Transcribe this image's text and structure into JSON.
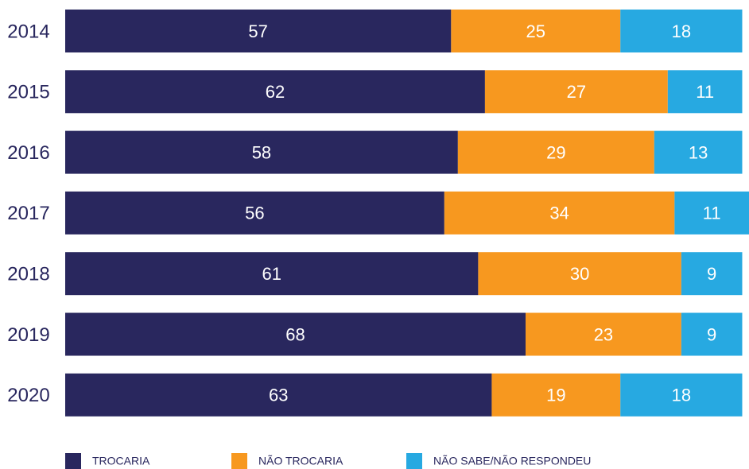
{
  "chart_data": {
    "type": "bar",
    "orientation": "horizontal",
    "stacked": true,
    "categories": [
      "2014",
      "2015",
      "2016",
      "2017",
      "2018",
      "2019",
      "2020"
    ],
    "series": [
      {
        "name": "TROCARIA",
        "color": "#29275e",
        "values": [
          57,
          62,
          58,
          56,
          61,
          68,
          63
        ]
      },
      {
        "name": "NÃO TROCARIA",
        "color": "#f7981f",
        "values": [
          25,
          27,
          29,
          34,
          30,
          23,
          19
        ]
      },
      {
        "name": "NÃO SABE/NÃO RESPONDEU",
        "color": "#27a9e1",
        "values": [
          18,
          11,
          13,
          11,
          9,
          9,
          18
        ]
      }
    ],
    "legend": "bottom"
  }
}
